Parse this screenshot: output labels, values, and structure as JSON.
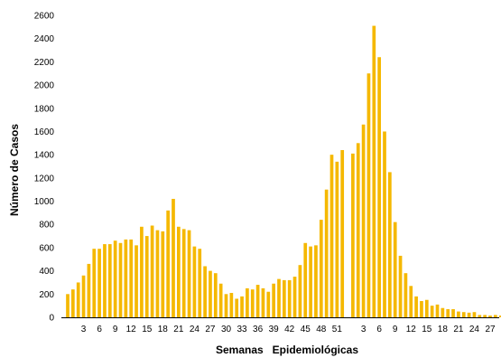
{
  "chart_data": {
    "type": "bar",
    "xlabel": "Semanas   Epidemiológicas",
    "ylabel": "Número de Casos",
    "ylim": [
      0,
      2600
    ],
    "yticks": [
      0,
      200,
      400,
      600,
      800,
      1000,
      1200,
      1400,
      1600,
      1800,
      2000,
      2200,
      2400,
      2600
    ],
    "grid": false,
    "bar_color": "#f5b800",
    "tick_labels": [
      {
        "index": 3,
        "label": "3"
      },
      {
        "index": 6,
        "label": "6"
      },
      {
        "index": 9,
        "label": "9"
      },
      {
        "index": 12,
        "label": "12"
      },
      {
        "index": 15,
        "label": "15"
      },
      {
        "index": 18,
        "label": "18"
      },
      {
        "index": 21,
        "label": "21"
      },
      {
        "index": 24,
        "label": "24"
      },
      {
        "index": 27,
        "label": "27"
      },
      {
        "index": 30,
        "label": "30"
      },
      {
        "index": 33,
        "label": "33"
      },
      {
        "index": 36,
        "label": "36"
      },
      {
        "index": 39,
        "label": "39"
      },
      {
        "index": 42,
        "label": "42"
      },
      {
        "index": 45,
        "label": "45"
      },
      {
        "index": 48,
        "label": "48"
      },
      {
        "index": 51,
        "label": "51"
      },
      {
        "index": 56,
        "label": "3"
      },
      {
        "index": 59,
        "label": "6"
      },
      {
        "index": 62,
        "label": "9"
      },
      {
        "index": 65,
        "label": "12"
      },
      {
        "index": 68,
        "label": "15"
      },
      {
        "index": 71,
        "label": "18"
      },
      {
        "index": 74,
        "label": "21"
      },
      {
        "index": 77,
        "label": "24"
      },
      {
        "index": 80,
        "label": "27"
      },
      {
        "index": 83,
        "label": "3"
      }
    ],
    "values": [
      200,
      240,
      300,
      360,
      460,
      590,
      590,
      630,
      630,
      660,
      640,
      670,
      670,
      620,
      780,
      700,
      790,
      750,
      740,
      920,
      1020,
      780,
      760,
      750,
      610,
      590,
      440,
      400,
      380,
      290,
      200,
      210,
      160,
      180,
      250,
      240,
      280,
      250,
      220,
      290,
      330,
      320,
      320,
      350,
      450,
      640,
      610,
      620,
      840,
      1100,
      1400,
      1340,
      1440,
      null,
      1410,
      1500,
      1660,
      2100,
      2510,
      2240,
      1600,
      1250,
      820,
      530,
      380,
      270,
      180,
      140,
      150,
      100,
      110,
      80,
      70,
      70,
      50,
      45,
      40,
      45,
      20,
      20,
      15,
      20,
      15,
      10
    ]
  }
}
